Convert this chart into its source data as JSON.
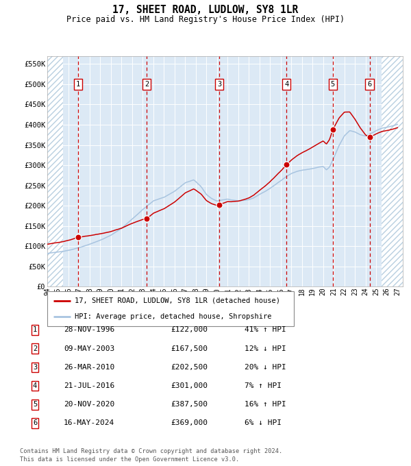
{
  "title": "17, SHEET ROAD, LUDLOW, SY8 1LR",
  "subtitle": "Price paid vs. HM Land Registry's House Price Index (HPI)",
  "legend_line1": "17, SHEET ROAD, LUDLOW, SY8 1LR (detached house)",
  "legend_line2": "HPI: Average price, detached house, Shropshire",
  "footnote1": "Contains HM Land Registry data © Crown copyright and database right 2024.",
  "footnote2": "This data is licensed under the Open Government Licence v3.0.",
  "ylim": [
    0,
    570000
  ],
  "yticks": [
    0,
    50000,
    100000,
    150000,
    200000,
    250000,
    300000,
    350000,
    400000,
    450000,
    500000,
    550000
  ],
  "ytick_labels": [
    "£0",
    "£50K",
    "£100K",
    "£150K",
    "£200K",
    "£250K",
    "£300K",
    "£350K",
    "£400K",
    "£450K",
    "£500K",
    "£550K"
  ],
  "xlim_start": 1994.0,
  "xlim_end": 2027.5,
  "xtick_years": [
    1994,
    1995,
    1996,
    1997,
    1998,
    1999,
    2000,
    2001,
    2002,
    2003,
    2004,
    2005,
    2006,
    2007,
    2008,
    2009,
    2010,
    2011,
    2012,
    2013,
    2014,
    2015,
    2016,
    2017,
    2018,
    2019,
    2020,
    2021,
    2022,
    2023,
    2024,
    2025,
    2026,
    2027
  ],
  "sale_dates_x": [
    1996.91,
    2003.36,
    2010.23,
    2016.55,
    2020.9,
    2024.37
  ],
  "sale_prices_y": [
    122000,
    167500,
    202500,
    301000,
    387500,
    369000
  ],
  "sale_labels": [
    "1",
    "2",
    "3",
    "4",
    "5",
    "6"
  ],
  "table_data": [
    [
      "1",
      "28-NOV-1996",
      "£122,000",
      "41% ↑ HPI"
    ],
    [
      "2",
      "09-MAY-2003",
      "£167,500",
      "12% ↓ HPI"
    ],
    [
      "3",
      "26-MAR-2010",
      "£202,500",
      "20% ↓ HPI"
    ],
    [
      "4",
      "21-JUL-2016",
      "£301,000",
      "7% ↑ HPI"
    ],
    [
      "5",
      "20-NOV-2020",
      "£387,500",
      "16% ↑ HPI"
    ],
    [
      "6",
      "16-MAY-2024",
      "£369,000",
      "6% ↓ HPI"
    ]
  ],
  "hpi_line_color": "#a8c4e0",
  "price_line_color": "#cc0000",
  "dot_color": "#cc0000",
  "dashed_line_color": "#cc0000",
  "bg_color": "#dce9f5",
  "grid_color": "#ffffff",
  "hatch_color": "#b8cfe0",
  "box_border_color": "#cc0000"
}
